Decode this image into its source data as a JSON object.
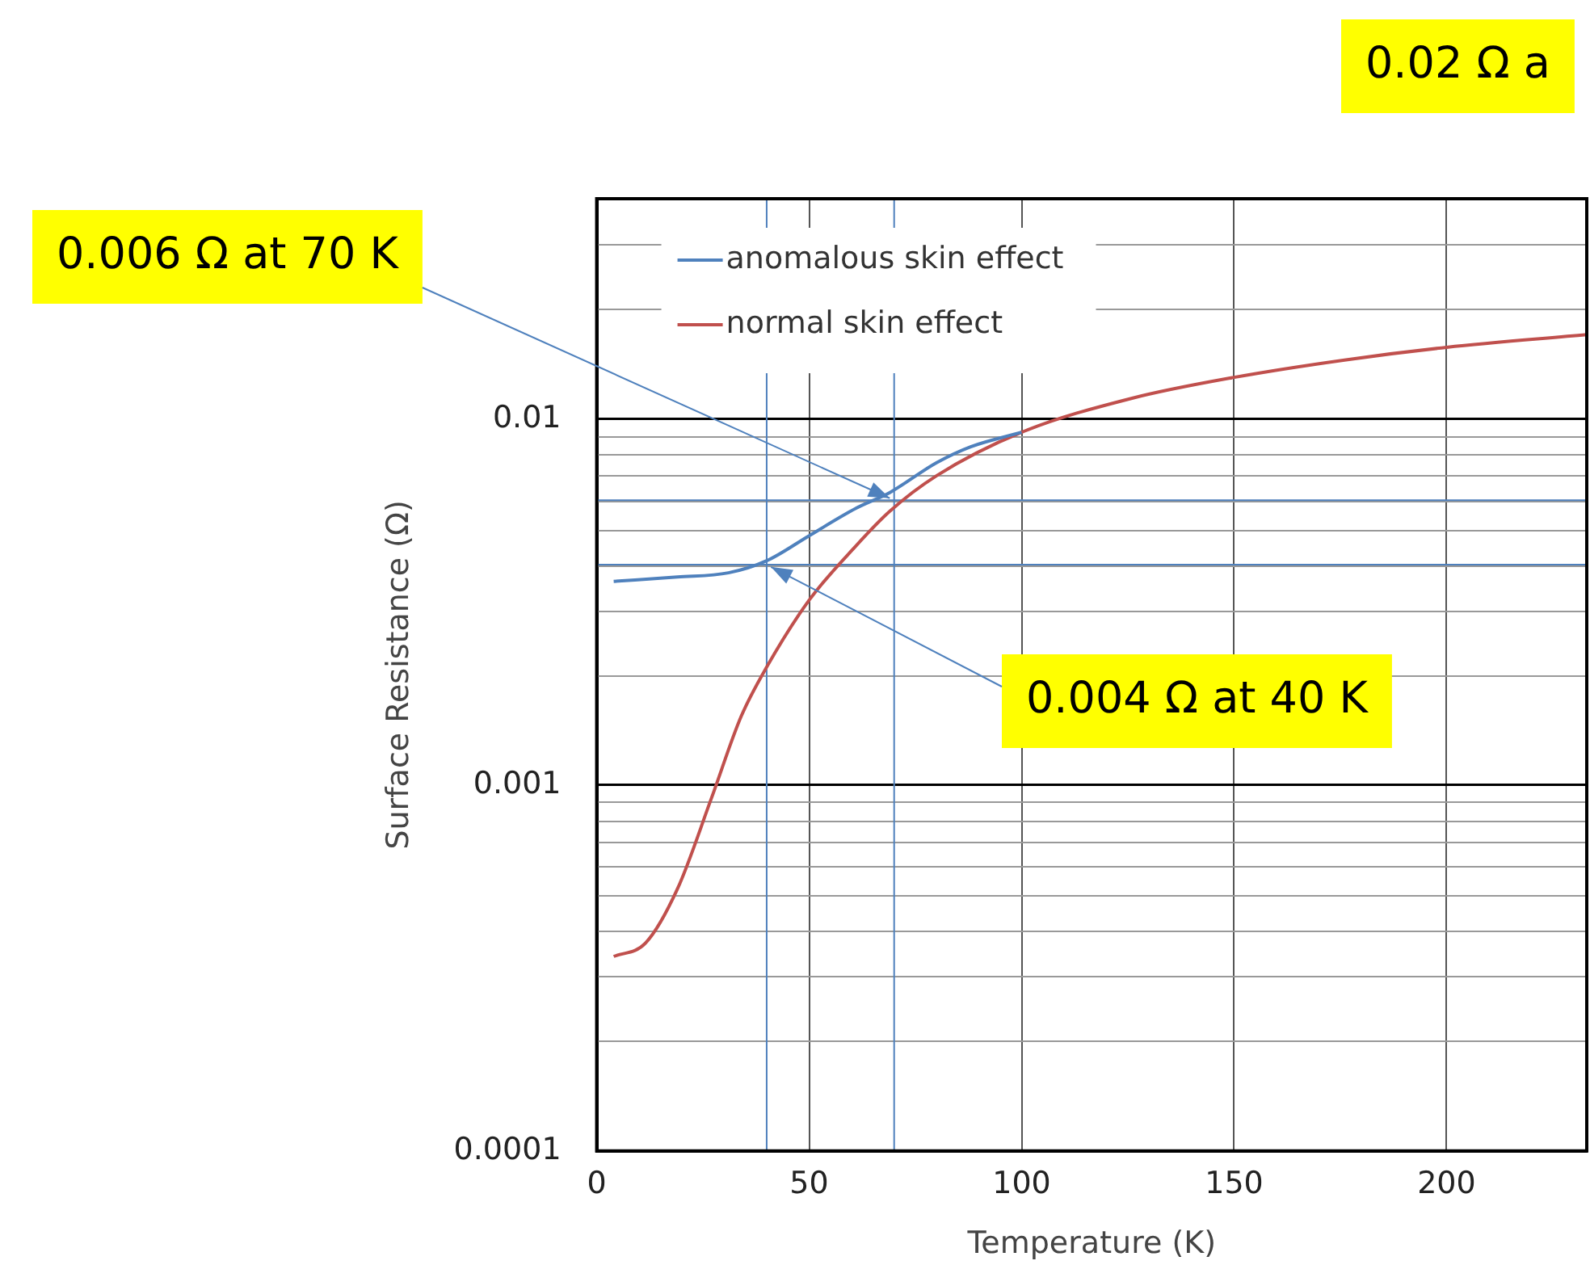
{
  "chart_data": {
    "type": "line",
    "xlabel": "Temperature (K)",
    "ylabel": "Surface Resistance (Ω)",
    "xlim": [
      0,
      233
    ],
    "xticks": [
      0,
      50,
      100,
      150,
      200
    ],
    "ylim": [
      0.0001,
      0.04
    ],
    "yticks": [
      0.0001,
      0.001,
      0.01
    ],
    "log": "y",
    "grid": true,
    "legend": "top left",
    "series": [
      {
        "name": "anomalous skin effect",
        "color": "#4f81bd",
        "x": [
          4,
          19,
          31,
          40,
          50,
          61,
          69,
          80,
          88,
          100
        ],
        "values": [
          0.0036,
          0.0037,
          0.0038,
          0.0041,
          0.0048,
          0.0057,
          0.0063,
          0.0076,
          0.0084,
          0.0092
        ]
      },
      {
        "name": "normal skin effect",
        "color": "#c0504d",
        "x": [
          4,
          11.5,
          19,
          27,
          34,
          40,
          50,
          61,
          69,
          80,
          100,
          126,
          150,
          176,
          200,
          233
        ],
        "values": [
          0.00034,
          0.00037,
          0.00052,
          0.00092,
          0.00154,
          0.0021,
          0.0032,
          0.0045,
          0.0056,
          0.007,
          0.0092,
          0.0114,
          0.013,
          0.0145,
          0.0157,
          0.017
        ]
      }
    ],
    "ref_lines": [
      {
        "axis": "x",
        "value": 40,
        "color": "#4f81bd"
      },
      {
        "axis": "x",
        "value": 70,
        "color": "#4f81bd"
      },
      {
        "axis": "y",
        "value": 0.004,
        "color": "#4f81bd"
      },
      {
        "axis": "y",
        "value": 0.006,
        "color": "#4f81bd"
      }
    ],
    "annotations": [
      {
        "text": "0.006 Ω at 70 K",
        "x": 70,
        "y": 0.006
      },
      {
        "text": "0.004 Ω at 40 K",
        "x": 40,
        "y": 0.004
      },
      "0.02 Ω a"
    ]
  }
}
